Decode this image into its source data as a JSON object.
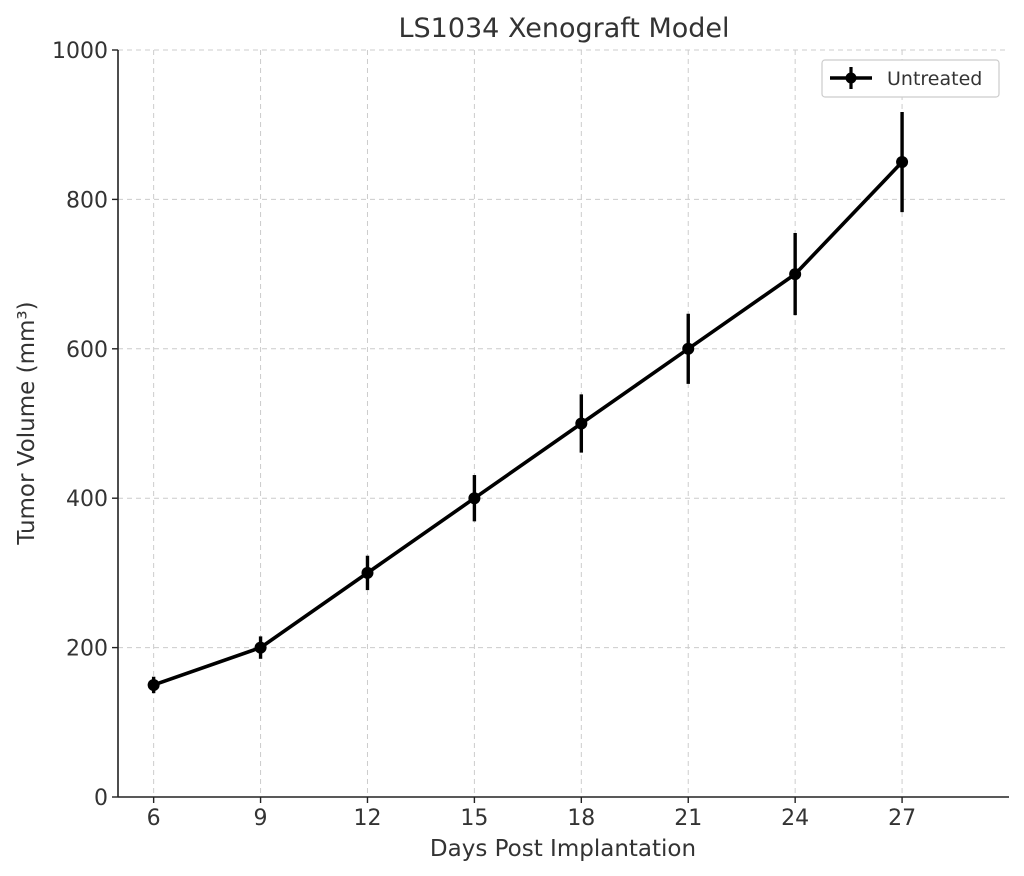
{
  "chart_data": {
    "type": "line",
    "title": "LS1034 Xenograft Model",
    "xlabel": "Days Post Implantation",
    "ylabel": "Tumor Volume (mm³)",
    "x": [
      6,
      9,
      12,
      15,
      18,
      21,
      24,
      27
    ],
    "xticks": [
      6,
      9,
      12,
      15,
      18,
      21,
      24,
      27
    ],
    "xlim": [
      5,
      30
    ],
    "ylim": [
      0,
      1000
    ],
    "yticks": [
      0,
      200,
      400,
      600,
      800,
      1000
    ],
    "grid": true,
    "legend_position": "top-right",
    "series": [
      {
        "name": "Untreated",
        "color": "#000000",
        "values": [
          150,
          200,
          300,
          400,
          500,
          600,
          700,
          850
        ],
        "errors": [
          11,
          15,
          23,
          31,
          39,
          47,
          55,
          67
        ]
      }
    ]
  }
}
